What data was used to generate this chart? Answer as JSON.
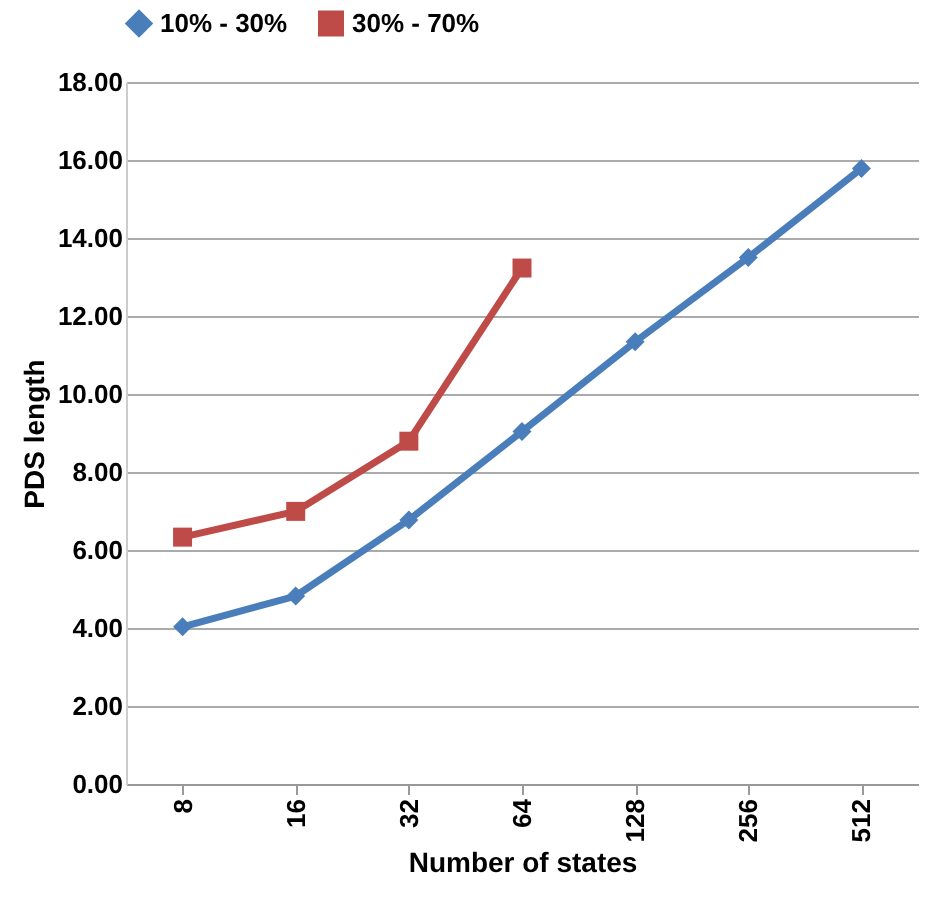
{
  "chart_data": {
    "type": "line",
    "xlabel": "Number of states",
    "ylabel": "PDS length",
    "categories": [
      "8",
      "16",
      "32",
      "64",
      "128",
      "256",
      "512"
    ],
    "series": [
      {
        "name": "10% - 30%",
        "color": "#4a7ebb",
        "marker": "diamond",
        "values": [
          4.03,
          4.82,
          6.77,
          9.04,
          11.34,
          13.5,
          15.78
        ]
      },
      {
        "name": "30% - 70%",
        "color": "#be4b48",
        "marker": "square",
        "values": [
          6.33,
          6.99,
          8.79,
          13.23,
          null,
          null,
          null
        ]
      }
    ],
    "ylim": [
      0,
      18
    ],
    "yticks": [
      {
        "value": 0,
        "label": "0.00"
      },
      {
        "value": 2,
        "label": "2.00"
      },
      {
        "value": 4,
        "label": "4.00"
      },
      {
        "value": 6,
        "label": "6.00"
      },
      {
        "value": 8,
        "label": "8.00"
      },
      {
        "value": 10,
        "label": "10.00"
      },
      {
        "value": 12,
        "label": "12.00"
      },
      {
        "value": 14,
        "label": "14.00"
      },
      {
        "value": 16,
        "label": "16.00"
      },
      {
        "value": 18,
        "label": "18.00"
      }
    ],
    "grid": "y",
    "legend": "top",
    "line_style": "solid"
  }
}
